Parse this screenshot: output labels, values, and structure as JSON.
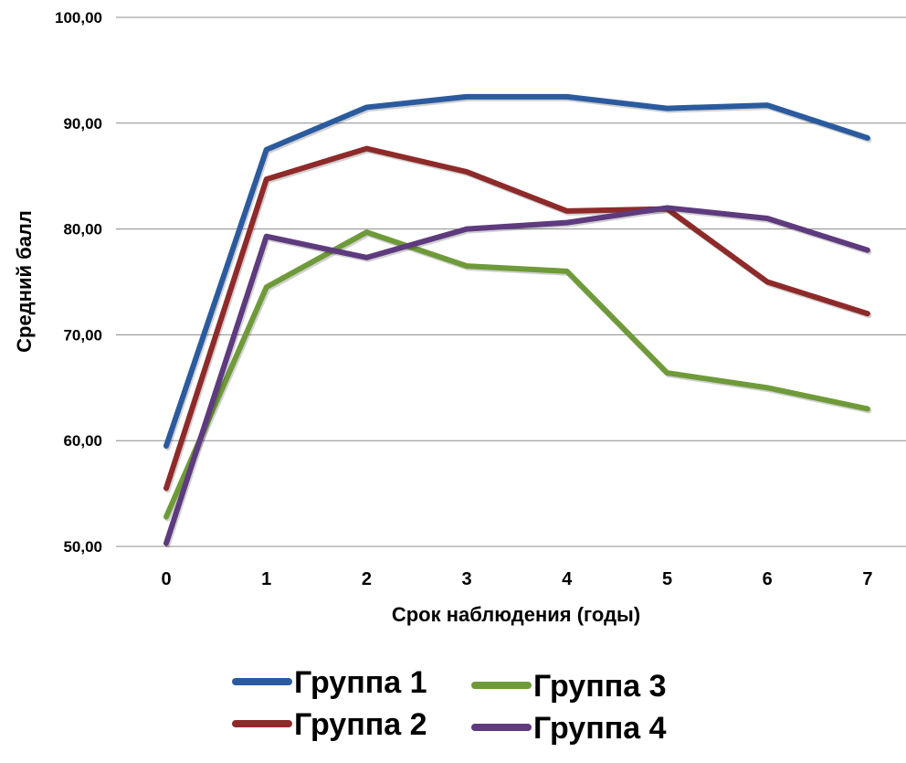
{
  "chart_data": {
    "type": "line",
    "title": "",
    "xlabel": "Срок наблюдения (годы)",
    "ylabel": "Средний балл",
    "x": [
      0,
      1,
      2,
      3,
      4,
      5,
      6,
      7
    ],
    "x_tick_labels": [
      "0",
      "1",
      "2",
      "3",
      "4",
      "5",
      "6",
      "7"
    ],
    "y_tick_labels": [
      "50,00",
      "60,00",
      "70,00",
      "80,00",
      "90,00",
      "100,00"
    ],
    "ylim": [
      50,
      100
    ],
    "y_ticks": [
      50,
      60,
      70,
      80,
      90,
      100
    ],
    "grid": true,
    "legend_position": "bottom",
    "series": [
      {
        "name": "Группа 1",
        "color": "#2B5B9E",
        "values": [
          59.5,
          87.5,
          91.5,
          92.5,
          92.5,
          91.4,
          91.7,
          88.6
        ]
      },
      {
        "name": "Группа 2",
        "color": "#8E2A2A",
        "values": [
          55.5,
          84.7,
          87.6,
          85.4,
          81.7,
          81.9,
          75.0,
          72.0
        ]
      },
      {
        "name": "Группа 3",
        "color": "#6F9A3A",
        "values": [
          52.8,
          74.5,
          79.7,
          76.5,
          76.0,
          66.4,
          65.0,
          63.0
        ]
      },
      {
        "name": "Группа 4",
        "color": "#5E3A7E",
        "values": [
          50.3,
          79.3,
          77.3,
          80.0,
          80.6,
          82.0,
          81.0,
          78.0
        ]
      }
    ]
  }
}
